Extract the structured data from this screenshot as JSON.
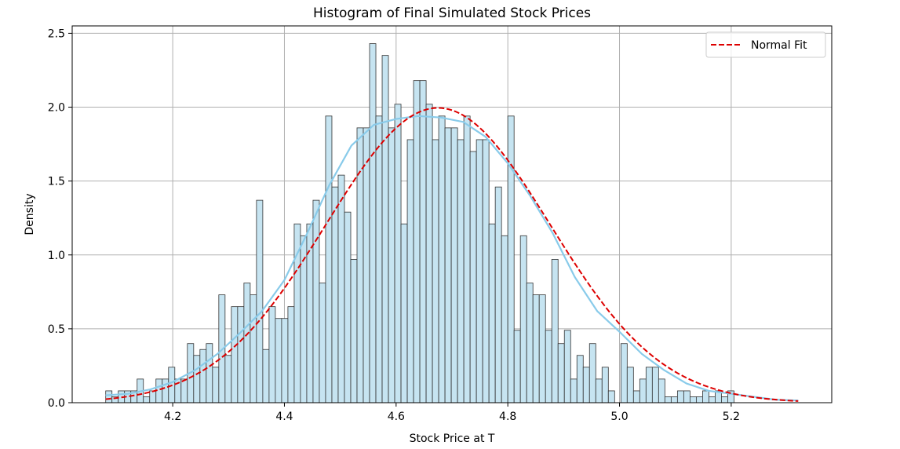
{
  "chart_data": {
    "type": "bar",
    "title": "Histogram of Final Simulated Stock Prices",
    "xlabel": "Stock Price at T",
    "ylabel": "Density",
    "xlim": [
      4.02,
      5.38
    ],
    "ylim": [
      0,
      2.55
    ],
    "xticks": [
      4.2,
      4.4,
      4.6,
      4.8,
      5.0,
      5.2
    ],
    "xtick_labels": [
      "4.2",
      "4.4",
      "4.6",
      "4.8",
      "5.0",
      "5.2"
    ],
    "yticks": [
      0.0,
      0.5,
      1.0,
      1.5,
      2.0,
      2.5
    ],
    "ytick_labels": [
      "0.0",
      "0.5",
      "1.0",
      "1.5",
      "2.0",
      "2.5"
    ],
    "grid": true,
    "legend": {
      "position": "top-right",
      "entries": [
        {
          "label": "Normal Fit",
          "color": "#dd0000",
          "style": "dashed"
        }
      ]
    },
    "histogram": {
      "bin_start": 4.08,
      "bin_width": 0.01125,
      "fill": "#c6e4f1",
      "edge": "#333333",
      "densities": [
        0.08,
        0.04,
        0.08,
        0.08,
        0.08,
        0.16,
        0.04,
        0.08,
        0.16,
        0.16,
        0.24,
        0.16,
        0.16,
        0.4,
        0.32,
        0.36,
        0.4,
        0.24,
        0.73,
        0.32,
        0.65,
        0.65,
        0.81,
        0.73,
        1.37,
        0.36,
        0.65,
        0.57,
        0.57,
        0.65,
        1.21,
        1.13,
        1.21,
        1.37,
        0.81,
        1.94,
        1.46,
        1.54,
        1.29,
        0.97,
        1.86,
        1.86,
        2.43,
        1.94,
        2.35,
        1.86,
        2.02,
        1.21,
        1.78,
        2.18,
        2.18,
        2.02,
        1.78,
        1.94,
        1.86,
        1.86,
        1.78,
        1.94,
        1.7,
        1.78,
        1.78,
        1.21,
        1.46,
        1.13,
        1.94,
        0.49,
        1.13,
        0.81,
        0.73,
        0.73,
        0.49,
        0.97,
        0.4,
        0.49,
        0.16,
        0.32,
        0.24,
        0.4,
        0.16,
        0.24,
        0.08,
        0.0,
        0.4,
        0.24,
        0.08,
        0.16,
        0.24,
        0.24,
        0.16,
        0.04,
        0.04,
        0.08,
        0.08,
        0.04,
        0.04,
        0.08,
        0.04,
        0.08,
        0.04,
        0.08
      ],
      "bins_note": "see x_edges"
    },
    "normal_fit": {
      "mean": 4.675,
      "std": 0.2,
      "peak": 1.995,
      "color": "#dd0000",
      "x_range": [
        4.08,
        5.32
      ]
    },
    "kde": {
      "color": "#89cbea",
      "x": [
        4.08,
        4.12,
        4.16,
        4.2,
        4.24,
        4.28,
        4.32,
        4.36,
        4.4,
        4.44,
        4.48,
        4.52,
        4.56,
        4.6,
        4.64,
        4.68,
        4.72,
        4.76,
        4.8,
        4.84,
        4.88,
        4.92,
        4.96,
        5.0,
        5.04,
        5.08,
        5.12,
        5.16,
        5.2,
        5.24,
        5.28,
        5.32
      ],
      "y": [
        0.05,
        0.06,
        0.09,
        0.14,
        0.22,
        0.33,
        0.47,
        0.62,
        0.83,
        1.14,
        1.47,
        1.74,
        1.88,
        1.92,
        1.94,
        1.93,
        1.9,
        1.8,
        1.62,
        1.4,
        1.15,
        0.85,
        0.62,
        0.48,
        0.33,
        0.22,
        0.13,
        0.08,
        0.06,
        0.04,
        0.02,
        0.015
      ]
    }
  }
}
